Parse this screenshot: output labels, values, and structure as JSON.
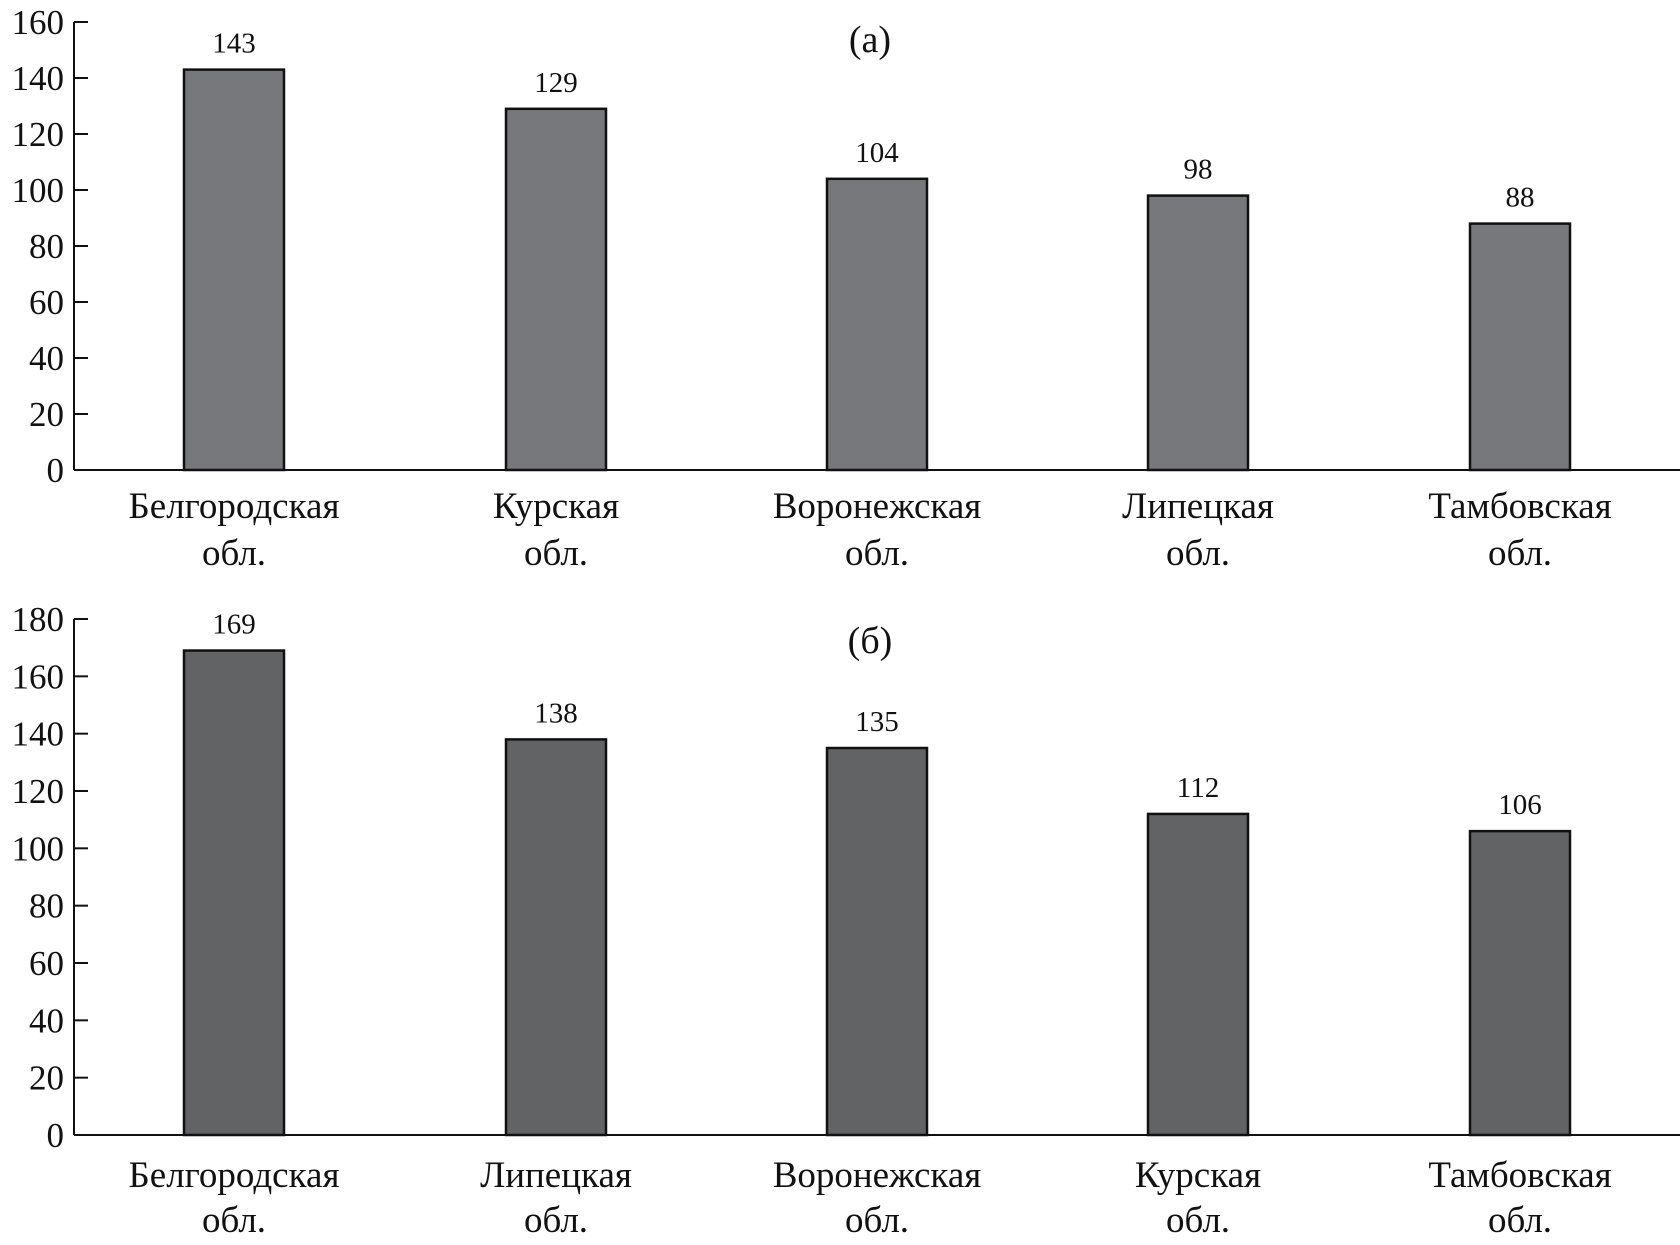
{
  "chart_data": [
    {
      "type": "bar",
      "title": "(а)",
      "categories": [
        [
          "Белгородская",
          "обл."
        ],
        [
          "Курская",
          "обл."
        ],
        [
          "Воронежская",
          "обл."
        ],
        [
          "Липецкая",
          "обл."
        ],
        [
          "Тамбовская",
          "обл."
        ]
      ],
      "values": [
        143,
        129,
        104,
        98,
        88
      ],
      "data_labels": [
        "143",
        "129",
        "104",
        "98",
        "88"
      ],
      "ylim": [
        0,
        160
      ],
      "yticks": [
        0,
        20,
        40,
        60,
        80,
        100,
        120,
        140,
        160
      ],
      "xlabel": "",
      "ylabel": "",
      "bar_color": "#77787b",
      "grid": false,
      "legend": "none"
    },
    {
      "type": "bar",
      "title": "(б)",
      "categories": [
        [
          "Белгородская",
          "обл."
        ],
        [
          "Липецкая",
          "обл."
        ],
        [
          "Воронежская",
          "обл."
        ],
        [
          "Курская",
          "обл."
        ],
        [
          "Тамбовская",
          "обл."
        ]
      ],
      "values": [
        169,
        138,
        135,
        112,
        106
      ],
      "data_labels": [
        "169",
        "138",
        "135",
        "112",
        "106"
      ],
      "ylim": [
        0,
        180
      ],
      "yticks": [
        0,
        20,
        40,
        60,
        80,
        100,
        120,
        140,
        160,
        180
      ],
      "xlabel": "",
      "ylabel": "",
      "bar_color": "#626365",
      "grid": false,
      "legend": "none"
    }
  ]
}
